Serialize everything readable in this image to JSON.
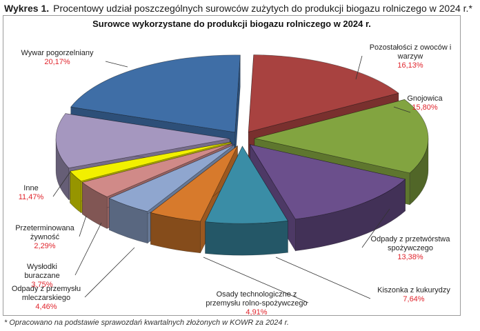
{
  "figure": {
    "number": "Wykres 1.",
    "caption": "Procentowy udział poszczególnych surowców zużytych do produkcji biogazu rolniczego w 2024 r.*",
    "footnote": "* Opracowano na podstawie sprawozdań kwartalnych złożonych w KOWR za 2024 r."
  },
  "chart_data": {
    "type": "pie",
    "title": "Surowce wykorzystane do produkcji biogazu rolniczego w 2024 r.",
    "style": "3d-exploded",
    "value_color": "#e0242c",
    "slices": [
      {
        "label": "Pozostałości z owoców i warzyw",
        "value": 16.13,
        "display": "16,13%",
        "color": "#a84240"
      },
      {
        "label": "Gnojowica",
        "value": 15.8,
        "display": "15,80%",
        "color": "#82a440"
      },
      {
        "label": "Odpady z przetwórstwa spożywczego",
        "value": 13.38,
        "display": "13,38%",
        "color": "#6b4f8c"
      },
      {
        "label": "Kiszonka z kukurydzy",
        "value": 7.64,
        "display": "7,64%",
        "color": "#3a8da6"
      },
      {
        "label": "Osady technologiczne z przemysłu rolno-spożywczego",
        "value": 4.91,
        "display": "4,91%",
        "color": "#d77a2c"
      },
      {
        "label": "Odpady z przemysłu mleczarskiego",
        "value": 4.46,
        "display": "4,46%",
        "color": "#8fa6cf"
      },
      {
        "label": "Wysłodki buraczane",
        "value": 3.75,
        "display": "3,75%",
        "color": "#d08a88"
      },
      {
        "label": "Przeterminowana żywność",
        "value": 2.29,
        "display": "2,29%",
        "color": "#f2f000"
      },
      {
        "label": "Inne",
        "value": 11.47,
        "display": "11,47%",
        "color": "#a597bf"
      },
      {
        "label": "Wywar pogorzelniany",
        "value": 20.17,
        "display": "20,17%",
        "color": "#3f6ea6"
      }
    ]
  }
}
